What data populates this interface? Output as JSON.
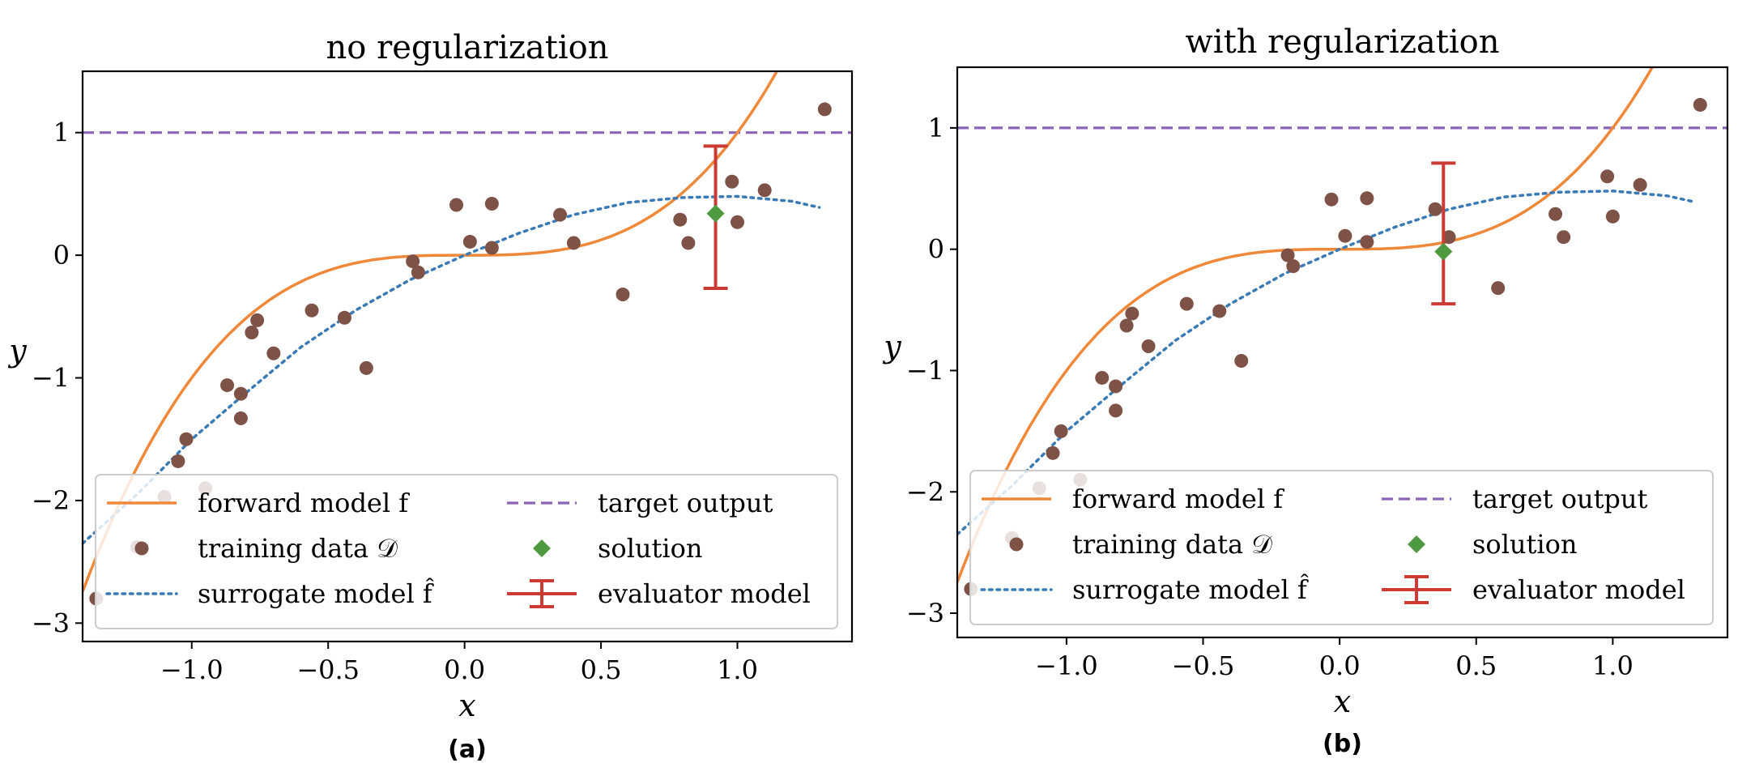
{
  "colors": {
    "forward": "#f0883a",
    "target": "#8b64b8",
    "training": "#7e5247",
    "surrogate": "#3a7ab5",
    "solution": "#4f9a41",
    "evaluator": "#cc3a34"
  },
  "chart_data": [
    {
      "type": "scatter",
      "title": "no regularization",
      "caption": "(a)",
      "xlabel": "x",
      "ylabel": "y",
      "xlim": [
        -1.4,
        1.42
      ],
      "ylim": [
        -3.15,
        1.5
      ],
      "xticks": [
        -1.0,
        -0.5,
        0.0,
        0.5,
        1.0
      ],
      "xtick_labels": [
        "−1.0",
        "−0.5",
        "0.0",
        "0.5",
        "1.0"
      ],
      "yticks": [
        -3,
        -2,
        -1,
        0,
        1
      ],
      "ytick_labels": [
        "−3",
        "−2",
        "−1",
        "0",
        "1"
      ],
      "legend_location": "bottom",
      "legend": {
        "forward": "forward model f",
        "training": "training data 𝒟",
        "surrogate": "surrogate model f̂",
        "target": "target output",
        "solution": "solution",
        "evaluator": "evaluator model"
      },
      "target_output": 1.0,
      "forward_model": "x^3",
      "surrogate_model": {
        "x": [
          -1.4,
          -1.2,
          -1.0,
          -0.8,
          -0.6,
          -0.4,
          -0.2,
          0.0,
          0.2,
          0.4,
          0.6,
          0.8,
          1.0,
          1.2,
          1.3
        ],
        "y": [
          -2.35,
          -1.95,
          -1.5,
          -1.12,
          -0.75,
          -0.45,
          -0.2,
          0.0,
          0.18,
          0.33,
          0.43,
          0.47,
          0.48,
          0.44,
          0.39
        ]
      },
      "training_data": [
        {
          "x": -1.35,
          "y": -2.8
        },
        {
          "x": -1.2,
          "y": -2.38
        },
        {
          "x": -1.1,
          "y": -1.97
        },
        {
          "x": -0.95,
          "y": -1.9
        },
        {
          "x": -1.05,
          "y": -1.68
        },
        {
          "x": -1.02,
          "y": -1.5
        },
        {
          "x": -0.82,
          "y": -1.33
        },
        {
          "x": -0.82,
          "y": -1.13
        },
        {
          "x": -0.87,
          "y": -1.06
        },
        {
          "x": -0.7,
          "y": -0.8
        },
        {
          "x": -0.76,
          "y": -0.53
        },
        {
          "x": -0.78,
          "y": -0.63
        },
        {
          "x": -0.56,
          "y": -0.45
        },
        {
          "x": -0.44,
          "y": -0.51
        },
        {
          "x": -0.36,
          "y": -0.92
        },
        {
          "x": -0.19,
          "y": -0.05
        },
        {
          "x": -0.17,
          "y": -0.14
        },
        {
          "x": -0.03,
          "y": 0.41
        },
        {
          "x": 0.1,
          "y": 0.42
        },
        {
          "x": 0.02,
          "y": 0.11
        },
        {
          "x": 0.1,
          "y": 0.06
        },
        {
          "x": 0.35,
          "y": 0.33
        },
        {
          "x": 0.4,
          "y": 0.1
        },
        {
          "x": 0.58,
          "y": -0.32
        },
        {
          "x": 0.79,
          "y": 0.29
        },
        {
          "x": 0.82,
          "y": 0.1
        },
        {
          "x": 0.98,
          "y": 0.6
        },
        {
          "x": 1.0,
          "y": 0.27
        },
        {
          "x": 1.1,
          "y": 0.53
        },
        {
          "x": 1.32,
          "y": 1.19
        }
      ],
      "solution": {
        "x": 0.92,
        "y": 0.34
      },
      "evaluator": {
        "x": 0.92,
        "y": 0.31,
        "ylow": -0.27,
        "yhigh": 0.89
      }
    },
    {
      "type": "scatter",
      "title": "with regularization",
      "caption": "(b)",
      "xlabel": "x",
      "ylabel": "y",
      "xlim": [
        -1.4,
        1.42
      ],
      "ylim": [
        -3.2,
        1.5
      ],
      "xticks": [
        -1.0,
        -0.5,
        0.0,
        0.5,
        1.0
      ],
      "xtick_labels": [
        "−1.0",
        "−0.5",
        "0.0",
        "0.5",
        "1.0"
      ],
      "yticks": [
        -3,
        -2,
        -1,
        0,
        1
      ],
      "ytick_labels": [
        "−3",
        "−2",
        "−1",
        "0",
        "1"
      ],
      "legend_location": "bottom",
      "legend": {
        "forward": "forward model f",
        "training": "training data 𝒟",
        "surrogate": "surrogate model f̂",
        "target": "target output",
        "solution": "solution",
        "evaluator": "evaluator model"
      },
      "target_output": 1.0,
      "forward_model": "x^3",
      "surrogate_model": {
        "x": [
          -1.4,
          -1.2,
          -1.0,
          -0.8,
          -0.6,
          -0.4,
          -0.2,
          0.0,
          0.2,
          0.4,
          0.6,
          0.8,
          1.0,
          1.2,
          1.3
        ],
        "y": [
          -2.35,
          -1.95,
          -1.5,
          -1.12,
          -0.75,
          -0.45,
          -0.2,
          0.0,
          0.18,
          0.33,
          0.43,
          0.47,
          0.48,
          0.44,
          0.39
        ]
      },
      "training_data": [
        {
          "x": -1.35,
          "y": -2.8
        },
        {
          "x": -1.2,
          "y": -2.38
        },
        {
          "x": -1.1,
          "y": -1.97
        },
        {
          "x": -0.95,
          "y": -1.9
        },
        {
          "x": -1.05,
          "y": -1.68
        },
        {
          "x": -1.02,
          "y": -1.5
        },
        {
          "x": -0.82,
          "y": -1.33
        },
        {
          "x": -0.82,
          "y": -1.13
        },
        {
          "x": -0.87,
          "y": -1.06
        },
        {
          "x": -0.7,
          "y": -0.8
        },
        {
          "x": -0.76,
          "y": -0.53
        },
        {
          "x": -0.78,
          "y": -0.63
        },
        {
          "x": -0.56,
          "y": -0.45
        },
        {
          "x": -0.44,
          "y": -0.51
        },
        {
          "x": -0.36,
          "y": -0.92
        },
        {
          "x": -0.19,
          "y": -0.05
        },
        {
          "x": -0.17,
          "y": -0.14
        },
        {
          "x": -0.03,
          "y": 0.41
        },
        {
          "x": 0.1,
          "y": 0.42
        },
        {
          "x": 0.02,
          "y": 0.11
        },
        {
          "x": 0.1,
          "y": 0.06
        },
        {
          "x": 0.35,
          "y": 0.33
        },
        {
          "x": 0.4,
          "y": 0.1
        },
        {
          "x": 0.58,
          "y": -0.32
        },
        {
          "x": 0.79,
          "y": 0.29
        },
        {
          "x": 0.82,
          "y": 0.1
        },
        {
          "x": 0.98,
          "y": 0.6
        },
        {
          "x": 1.0,
          "y": 0.27
        },
        {
          "x": 1.1,
          "y": 0.53
        },
        {
          "x": 1.32,
          "y": 1.19
        }
      ],
      "solution": {
        "x": 0.38,
        "y": -0.02
      },
      "evaluator": {
        "x": 0.38,
        "y": 0.13,
        "ylow": -0.45,
        "yhigh": 0.71
      }
    }
  ]
}
